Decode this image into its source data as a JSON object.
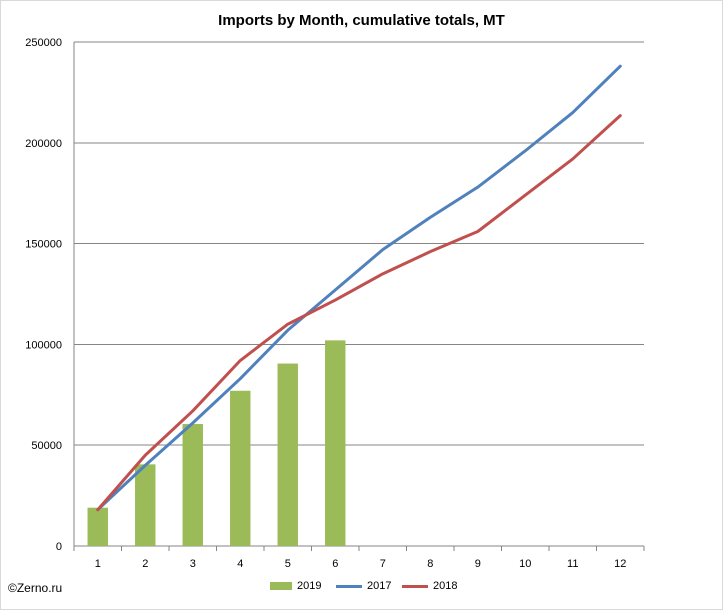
{
  "chart_data": {
    "type": "bar+line",
    "title": "Imports by Month, cumulative totals, MT",
    "categories": [
      "1",
      "2",
      "3",
      "4",
      "5",
      "6",
      "7",
      "8",
      "9",
      "10",
      "11",
      "12"
    ],
    "ylim": [
      0,
      250000
    ],
    "yticks": [
      "0",
      "50000",
      "100000",
      "150000",
      "200000",
      "250000"
    ],
    "grid": true,
    "legend_position": "bottom",
    "series": [
      {
        "name": "2019",
        "kind": "bar",
        "color": "#9bbb59",
        "values": [
          19000,
          40500,
          60500,
          77000,
          90500,
          102000,
          null,
          null,
          null,
          null,
          null,
          null
        ]
      },
      {
        "name": "2017",
        "kind": "line",
        "color": "#4f81bd",
        "values": [
          18000,
          40000,
          61000,
          83000,
          107000,
          127000,
          147000,
          163000,
          178000,
          196000,
          215000,
          238000
        ]
      },
      {
        "name": "2018",
        "kind": "line",
        "color": "#c0504d",
        "values": [
          18000,
          45000,
          67000,
          92000,
          110000,
          122000,
          135000,
          146000,
          156000,
          174000,
          192000,
          213500
        ]
      }
    ]
  },
  "credit": "©Zerno.ru"
}
